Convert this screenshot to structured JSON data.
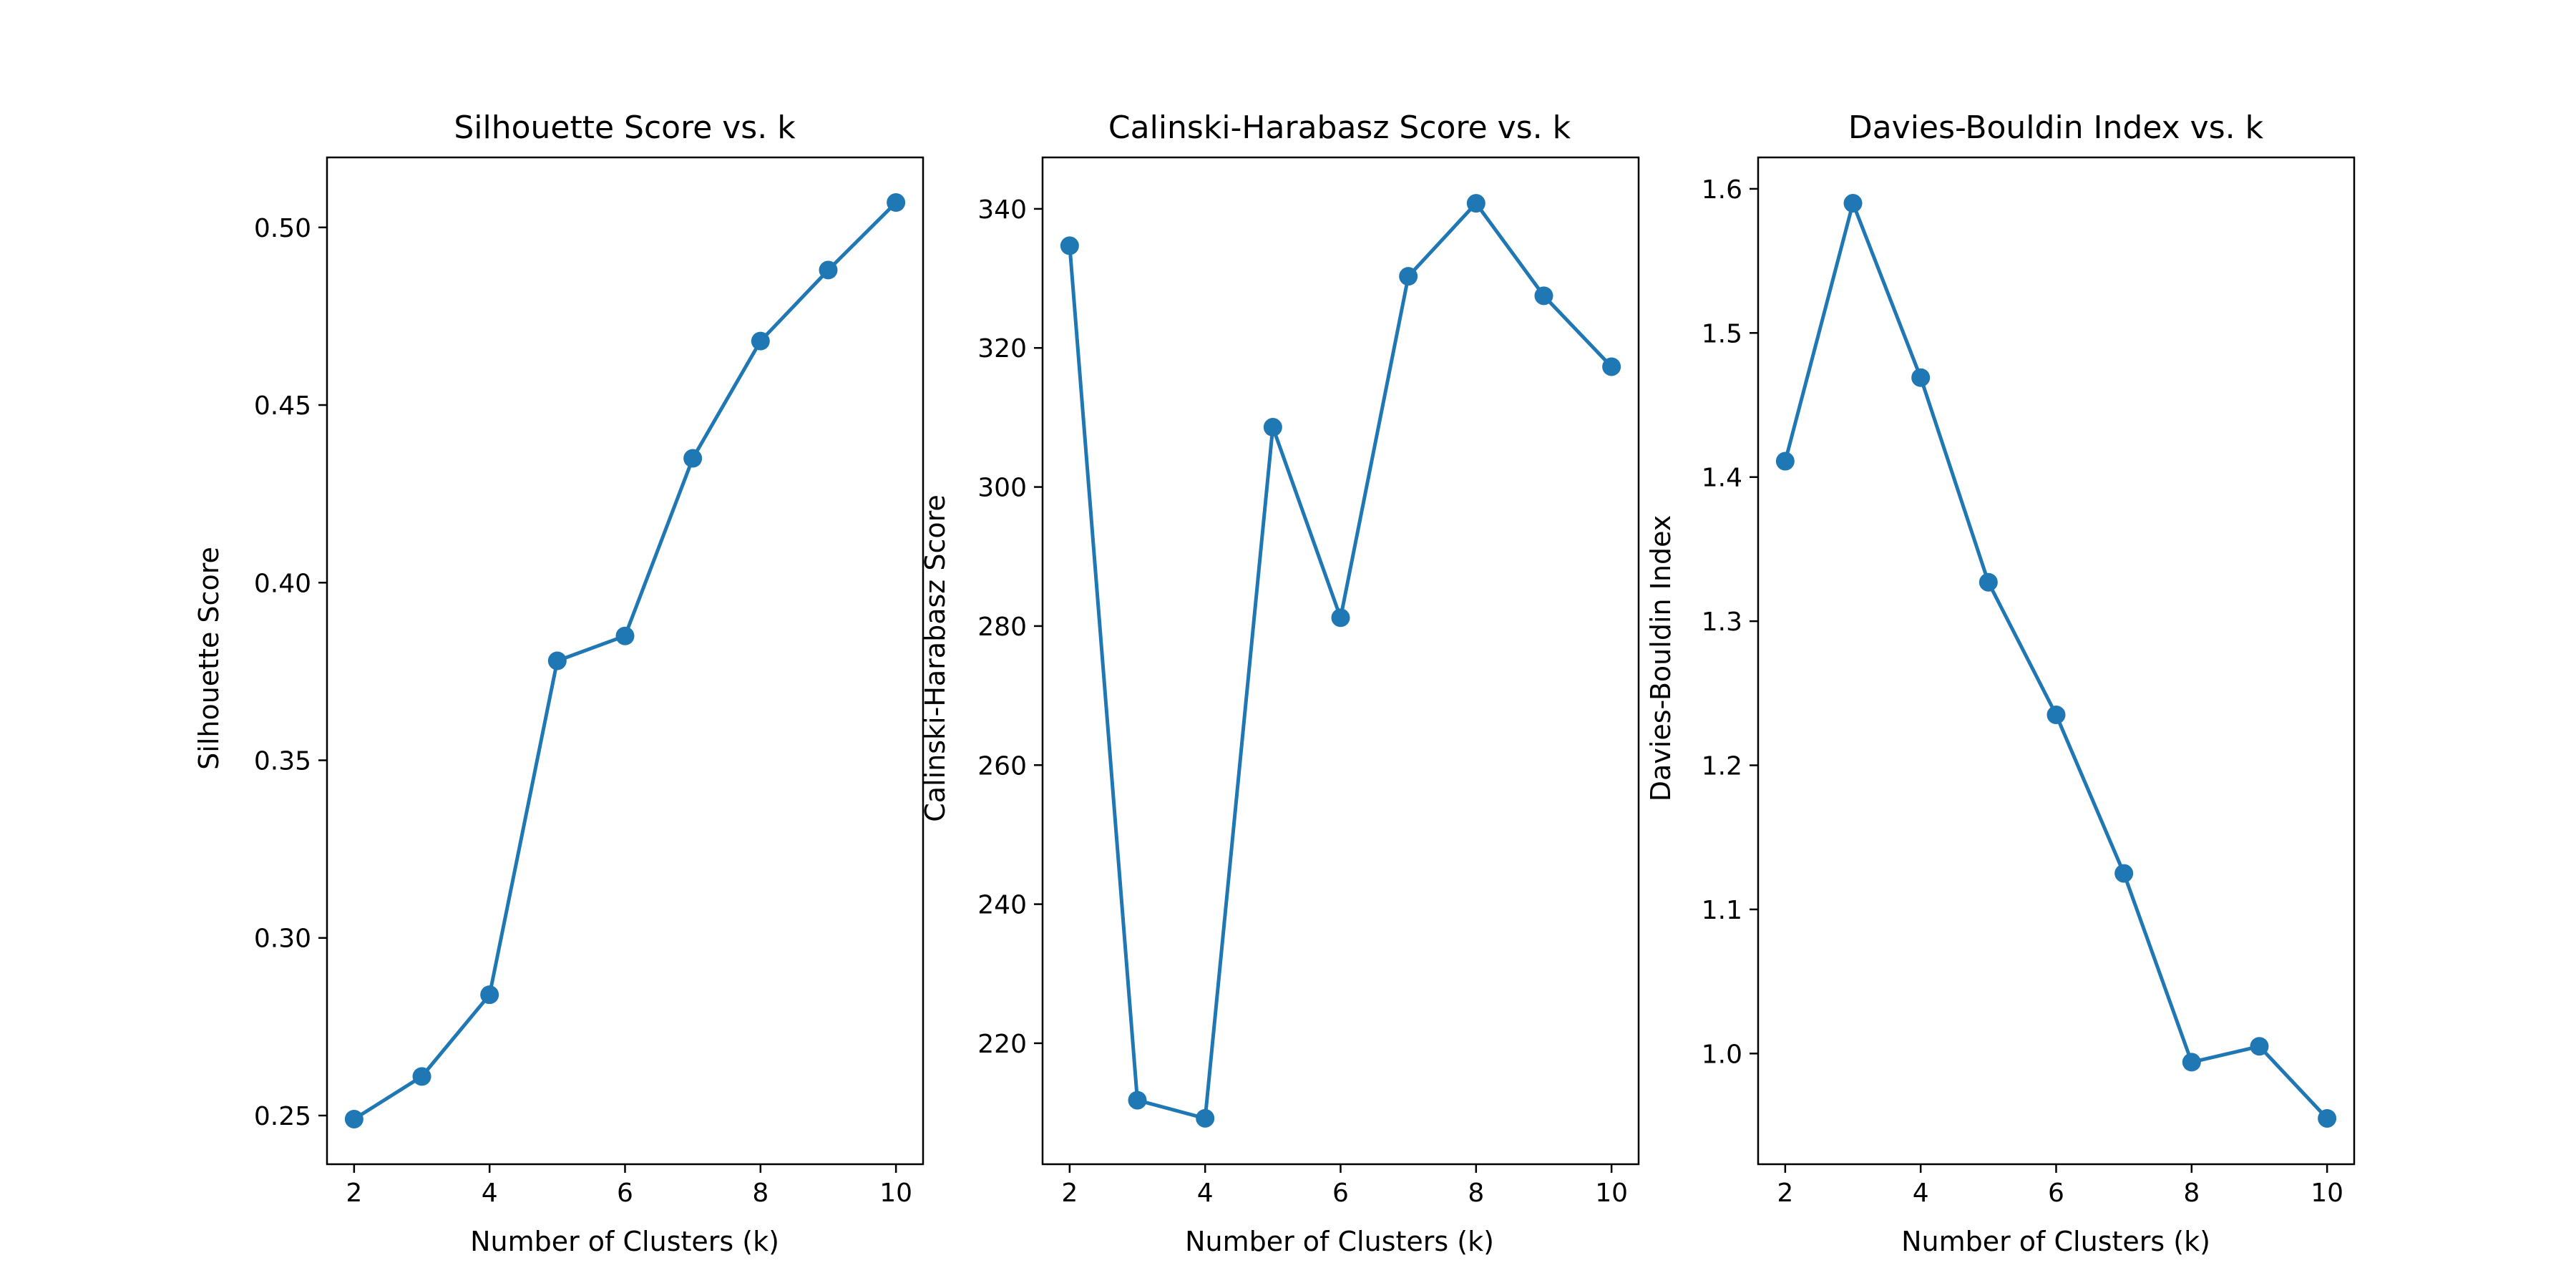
{
  "chart_data": [
    {
      "type": "line",
      "title": "Silhouette Score vs. k",
      "xlabel": "Number of Clusters (k)",
      "ylabel": "Silhouette Score",
      "x": [
        2,
        3,
        4,
        5,
        6,
        7,
        8,
        9,
        10
      ],
      "values": [
        0.249,
        0.261,
        0.284,
        0.378,
        0.385,
        0.435,
        0.468,
        0.488,
        0.507
      ],
      "xlim": [
        1.6,
        10.4
      ],
      "ylim": [
        0.2363,
        0.5197
      ],
      "xticks": [
        2,
        4,
        6,
        8,
        10
      ],
      "xtick_labels": [
        "2",
        "4",
        "6",
        "8",
        "10"
      ],
      "yticks": [
        0.25,
        0.3,
        0.35,
        0.4,
        0.45,
        0.5
      ],
      "ytick_labels": [
        "0.25",
        "0.30",
        "0.35",
        "0.40",
        "0.45",
        "0.50"
      ],
      "color": "#1f77b4",
      "grid": false
    },
    {
      "type": "line",
      "title": "Calinski-Harabasz Score vs. k",
      "xlabel": "Number of Clusters (k)",
      "ylabel": "Calinski-Harabasz Score",
      "x": [
        2,
        3,
        4,
        5,
        6,
        7,
        8,
        9,
        10
      ],
      "values": [
        334.7,
        211.8,
        209.2,
        308.6,
        281.2,
        330.3,
        340.8,
        327.5,
        317.3
      ],
      "xlim": [
        1.6,
        10.4
      ],
      "ylim": [
        202.6,
        347.4
      ],
      "xticks": [
        2,
        4,
        6,
        8,
        10
      ],
      "xtick_labels": [
        "2",
        "4",
        "6",
        "8",
        "10"
      ],
      "yticks": [
        220,
        240,
        260,
        280,
        300,
        320,
        340
      ],
      "ytick_labels": [
        "220",
        "240",
        "260",
        "280",
        "300",
        "320",
        "340"
      ],
      "color": "#1f77b4",
      "grid": false
    },
    {
      "type": "line",
      "title": "Davies-Bouldin Index vs. k",
      "xlabel": "Number of Clusters (k)",
      "ylabel": "Davies-Bouldin Index",
      "x": [
        2,
        3,
        4,
        5,
        6,
        7,
        8,
        9,
        10
      ],
      "values": [
        1.411,
        1.59,
        1.469,
        1.327,
        1.235,
        1.125,
        0.994,
        1.005,
        0.955
      ],
      "xlim": [
        1.6,
        10.4
      ],
      "ylim": [
        0.9232,
        1.6218
      ],
      "xticks": [
        2,
        4,
        6,
        8,
        10
      ],
      "xtick_labels": [
        "2",
        "4",
        "6",
        "8",
        "10"
      ],
      "yticks": [
        1.0,
        1.1,
        1.2,
        1.3,
        1.4,
        1.5,
        1.6
      ],
      "ytick_labels": [
        "1.0",
        "1.1",
        "1.2",
        "1.3",
        "1.4",
        "1.5",
        "1.6"
      ],
      "color": "#1f77b4",
      "grid": false
    }
  ]
}
